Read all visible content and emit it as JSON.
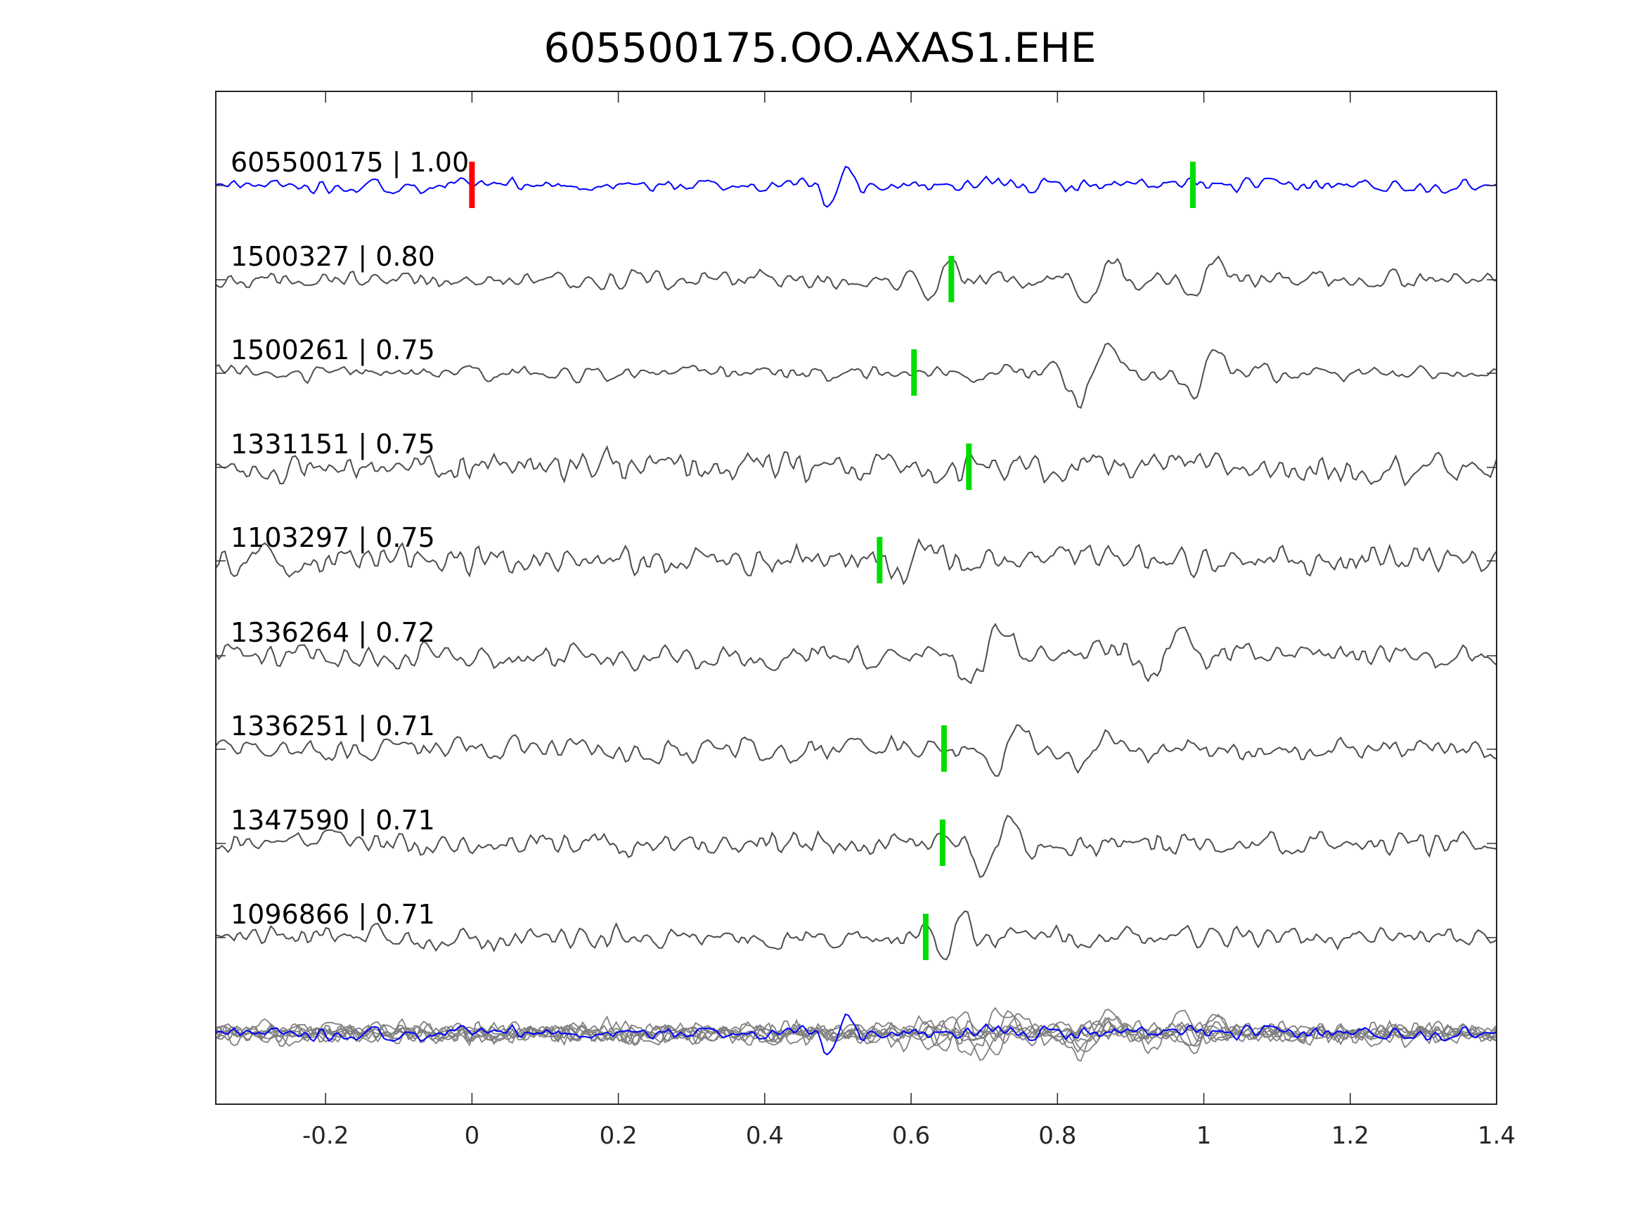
{
  "chart_data": {
    "type": "line",
    "title": "605500175.OO.AXAS1.EHE",
    "xlabel": "",
    "ylabel": "",
    "xlim": [
      -0.35,
      1.4
    ],
    "xticks": [
      "-0.2",
      "0",
      "0.2",
      "0.4",
      "0.6",
      "0.8",
      "1",
      "1.2",
      "1.4"
    ],
    "xtick_values": [
      -0.2,
      0,
      0.2,
      0.4,
      0.6,
      0.8,
      1.0,
      1.2,
      1.4
    ],
    "grid": false,
    "colors": {
      "reference": "#0000ff",
      "template": "#4d4d4d",
      "stack": "#808080",
      "origin_marker": "#ff0000",
      "pick_marker": "#00dd00"
    },
    "reference_origin_time": 0,
    "traces": [
      {
        "label": "605500175 | 1.00",
        "id": "605500175",
        "cc": 1.0,
        "pick": 0.985,
        "reference": true
      },
      {
        "label": "1500327 | 0.80",
        "id": "1500327",
        "cc": 0.8,
        "pick": 0.655
      },
      {
        "label": "1500261 | 0.75",
        "id": "1500261",
        "cc": 0.75,
        "pick": 0.604
      },
      {
        "label": "1331151 | 0.75",
        "id": "1331151",
        "cc": 0.75,
        "pick": 0.679
      },
      {
        "label": "1103297 | 0.75",
        "id": "1103297",
        "cc": 0.75,
        "pick": 0.557
      },
      {
        "label": "1336264 | 0.72",
        "id": "1336264",
        "cc": 0.72,
        "pick": null
      },
      {
        "label": "1336251 | 0.71",
        "id": "1336251",
        "cc": 0.71,
        "pick": 0.645
      },
      {
        "label": "1347590 | 0.71",
        "id": "1347590",
        "cc": 0.71,
        "pick": 0.643
      },
      {
        "label": "1096866 | 0.71",
        "id": "1096866",
        "cc": 0.71,
        "pick": 0.62
      }
    ]
  }
}
